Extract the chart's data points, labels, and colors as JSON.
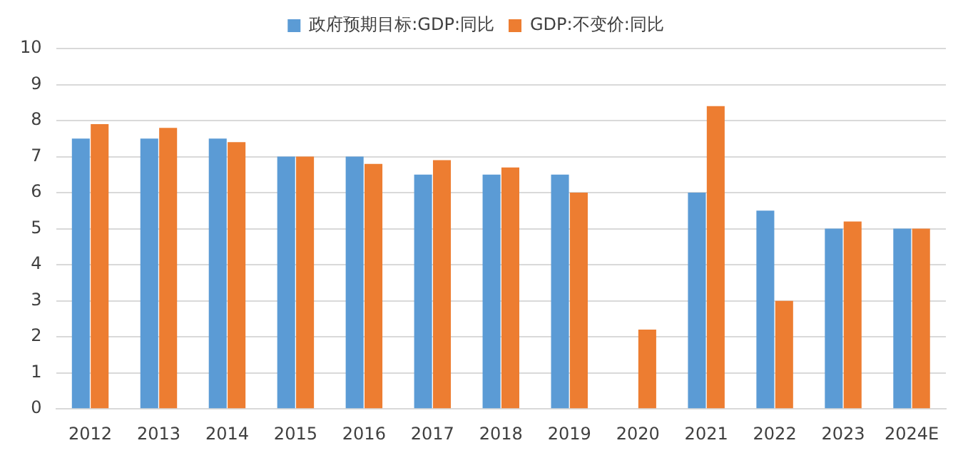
{
  "chart_data": {
    "type": "bar",
    "categories": [
      "2012",
      "2013",
      "2014",
      "2015",
      "2016",
      "2017",
      "2018",
      "2019",
      "2020",
      "2021",
      "2022",
      "2023",
      "2024E"
    ],
    "series": [
      {
        "name": "政府预期目标:GDP:同比",
        "color": "#5b9bd5",
        "values": [
          7.5,
          7.5,
          7.5,
          7.0,
          7.0,
          6.5,
          6.5,
          6.5,
          null,
          6.0,
          5.5,
          5.0,
          5.0
        ]
      },
      {
        "name": "GDP:不变价:同比",
        "color": "#ed7d31",
        "values": [
          7.9,
          7.8,
          7.4,
          7.0,
          6.8,
          6.9,
          6.7,
          6.0,
          2.2,
          8.4,
          3.0,
          5.2,
          5.0
        ]
      }
    ],
    "ylim": [
      0,
      10
    ],
    "yticks": [
      0,
      1,
      2,
      3,
      4,
      5,
      6,
      7,
      8,
      9,
      10
    ],
    "grid": "y",
    "legend": "top"
  }
}
